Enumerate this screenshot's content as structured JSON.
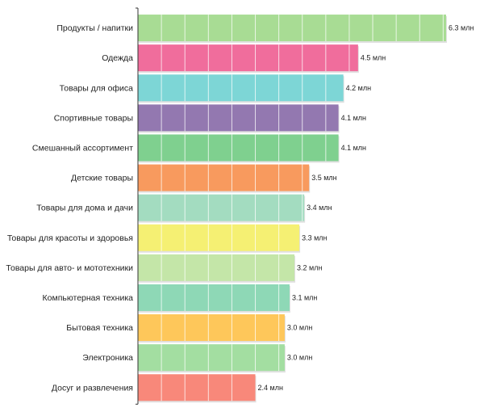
{
  "chart_data": {
    "type": "bar",
    "orientation": "horizontal",
    "title": "",
    "xlabel": "",
    "ylabel": "",
    "xlim": [
      0,
      6.8
    ],
    "grid": true,
    "value_unit": "млн",
    "categories": [
      "Продукты / напитки",
      "Одежда",
      "Товары для офиса",
      "Спортивные товары",
      "Смешанный ассортимент",
      "Детские товары",
      "Товары для дома и дачи",
      "Товары для красоты и здоровья",
      "Товары для авто- и мототехники",
      "Компьютерная техника",
      "Бытовая техника",
      "Электроника",
      "Досуг и развлечения"
    ],
    "values": [
      6.3,
      4.5,
      4.2,
      4.1,
      4.1,
      3.5,
      3.4,
      3.3,
      3.2,
      3.1,
      3.0,
      3.0,
      2.4
    ],
    "value_labels": [
      "6.3 млн",
      "4.5 млн",
      "4.2 млн",
      "4.1 млн",
      "4.1 млн",
      "3.5 млн",
      "3.4 млн",
      "3.3 млн",
      "3.2 млн",
      "3.1 млн",
      "3.0 млн",
      "3.0 млн",
      "2.4 млн"
    ],
    "colors": [
      "#a8dc94",
      "#f06d9c",
      "#7dd6d6",
      "#9378b0",
      "#7fd08f",
      "#f89a5e",
      "#a3dcc0",
      "#f5f073",
      "#c4e6a8",
      "#8ed8b6",
      "#fec75a",
      "#a3dea1",
      "#f8887a"
    ]
  }
}
